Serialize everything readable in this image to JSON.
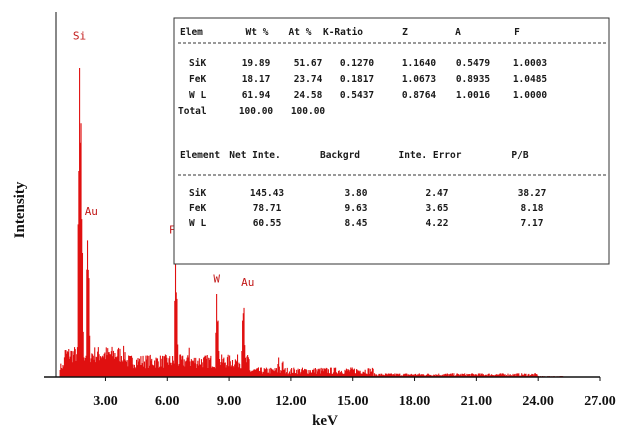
{
  "chart_data": {
    "type": "spectrum",
    "xlabel": "keV",
    "ylabel": "Intensity",
    "xlim": [
      0.6,
      27.0
    ],
    "ylim": [
      0,
      1000
    ],
    "x_ticks": [
      "3.00",
      "6.00",
      "9.00",
      "12.00",
      "15.00",
      "18.00",
      "21.00",
      "24.00",
      "27.00"
    ],
    "series_color": "#e01010",
    "peaks": [
      {
        "label": "Si",
        "x": 1.74,
        "y": 950
      },
      {
        "label": "Au",
        "x": 2.12,
        "y": 450
      },
      {
        "label": "Fe",
        "x": 6.4,
        "y": 390
      },
      {
        "label": "W",
        "x": 8.4,
        "y": 255
      },
      {
        "label": "Au",
        "x": 9.71,
        "y": 245
      }
    ],
    "table": {
      "quant_headers": [
        "Elem",
        "Wt %",
        "At %",
        "K-Ratio",
        "Z",
        "A",
        "F"
      ],
      "quant_rows": [
        [
          "SiK",
          "19.89",
          "51.67",
          "0.1270",
          "1.1640",
          "0.5479",
          "1.0003"
        ],
        [
          "FeK",
          "18.17",
          "23.74",
          "0.1817",
          "1.0673",
          "0.8935",
          "1.0485"
        ],
        [
          "W L",
          "61.94",
          "24.58",
          "0.5437",
          "0.8764",
          "1.0016",
          "1.0000"
        ],
        [
          "Total",
          "100.00",
          "100.00",
          "",
          "",
          "",
          ""
        ]
      ],
      "net_headers": [
        "Element",
        "Net Inte.",
        "Backgrd",
        "Inte. Error",
        "P/B"
      ],
      "net_rows": [
        [
          "SiK",
          "145.43",
          "3.80",
          "2.47",
          "38.27"
        ],
        [
          "FeK",
          "78.71",
          "9.63",
          "3.65",
          "8.18"
        ],
        [
          "W L",
          "60.55",
          "8.45",
          "4.22",
          "7.17"
        ]
      ]
    }
  }
}
